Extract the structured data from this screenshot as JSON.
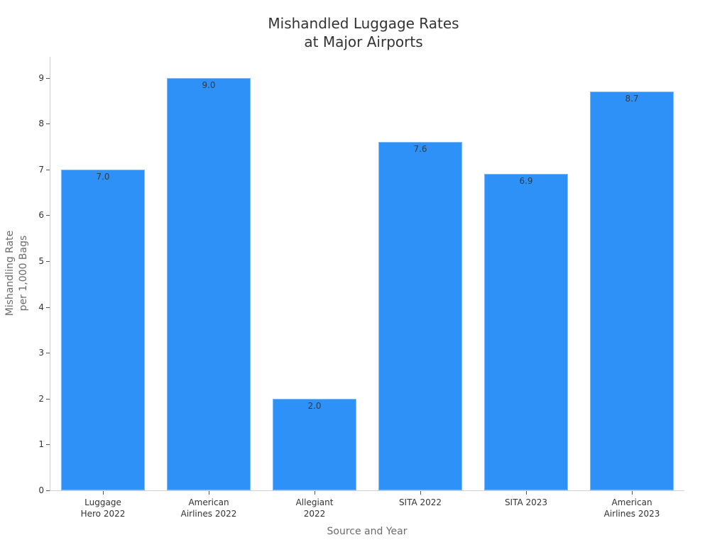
{
  "chart_data": {
    "type": "bar",
    "title": "Mishandled Luggage Rates at Major Airports",
    "title_lines": [
      "Mishandled Luggage Rates",
      "at Major Airports"
    ],
    "xlabel": "Source and Year",
    "ylabel": "Mishandling Rate per 1,000 Bags",
    "ylabel_lines": [
      "Mishandling Rate",
      "per 1,000 Bags"
    ],
    "categories": [
      "Luggage\nHero 2022",
      "American\nAirlines 2022",
      "Allegiant\n2022",
      "SITA 2022",
      "SITA 2023",
      "American\nAirlines 2023"
    ],
    "values": [
      7.0,
      9.0,
      2.0,
      7.6,
      6.9,
      8.7
    ],
    "value_labels": [
      "7.0",
      "9.0",
      "2.0",
      "7.6",
      "6.9",
      "8.7"
    ],
    "yticks": [
      0,
      1,
      2,
      3,
      4,
      5,
      6,
      7,
      8,
      9
    ],
    "ylim": [
      0,
      9.4
    ],
    "grid": false,
    "legend": null,
    "bar_color": "#2e91f8"
  }
}
